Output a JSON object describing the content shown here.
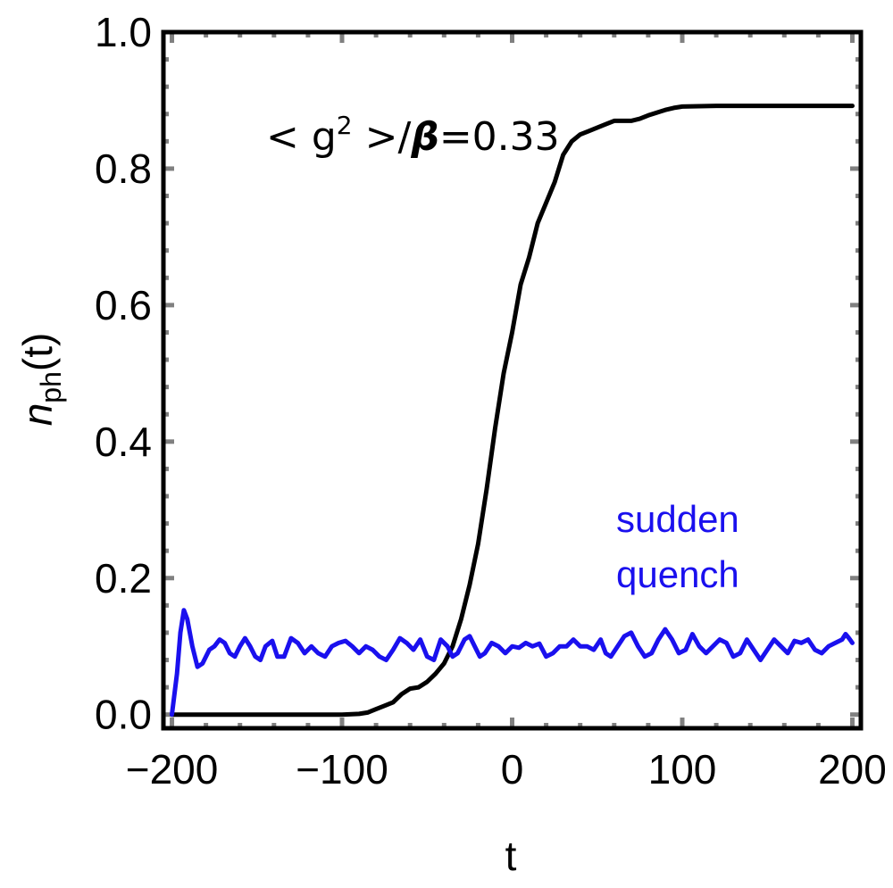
{
  "chart_data": {
    "type": "line",
    "xlabel": "t",
    "ylabel": {
      "base": "n",
      "sub": "ph",
      "suffix": "(t)"
    },
    "xlim": [
      -205,
      205
    ],
    "ylim": [
      -0.02,
      1.0
    ],
    "x_ticks": [
      -200,
      -100,
      0,
      100,
      200
    ],
    "x_tick_labels": [
      "−200",
      "−100",
      "0",
      "100",
      "200"
    ],
    "y_ticks": [
      0.0,
      0.2,
      0.4,
      0.6,
      0.8,
      1.0
    ],
    "y_tick_labels": [
      "0.0",
      "0.2",
      "0.4",
      "0.6",
      "0.8",
      "1.0"
    ],
    "grid": false,
    "annotation": {
      "pre": "< g",
      "sup": "2",
      "mid": " >/",
      "beta": "β",
      "post": "=0.33"
    },
    "series": [
      {
        "name": "",
        "color": "#000000",
        "points": [
          [
            -200,
            0.0
          ],
          [
            -180,
            0.0
          ],
          [
            -160,
            0.0
          ],
          [
            -140,
            0.0
          ],
          [
            -120,
            0.0
          ],
          [
            -100,
            0.0
          ],
          [
            -90,
            0.001
          ],
          [
            -85,
            0.003
          ],
          [
            -80,
            0.008
          ],
          [
            -75,
            0.013
          ],
          [
            -70,
            0.018
          ],
          [
            -65,
            0.03
          ],
          [
            -60,
            0.038
          ],
          [
            -55,
            0.04
          ],
          [
            -50,
            0.048
          ],
          [
            -45,
            0.06
          ],
          [
            -40,
            0.075
          ],
          [
            -35,
            0.1
          ],
          [
            -30,
            0.14
          ],
          [
            -25,
            0.19
          ],
          [
            -20,
            0.25
          ],
          [
            -15,
            0.33
          ],
          [
            -10,
            0.42
          ],
          [
            -5,
            0.5
          ],
          [
            0,
            0.56
          ],
          [
            5,
            0.63
          ],
          [
            10,
            0.67
          ],
          [
            15,
            0.72
          ],
          [
            20,
            0.75
          ],
          [
            25,
            0.78
          ],
          [
            30,
            0.82
          ],
          [
            35,
            0.84
          ],
          [
            40,
            0.85
          ],
          [
            45,
            0.855
          ],
          [
            50,
            0.86
          ],
          [
            55,
            0.865
          ],
          [
            60,
            0.87
          ],
          [
            65,
            0.87
          ],
          [
            70,
            0.87
          ],
          [
            75,
            0.873
          ],
          [
            80,
            0.878
          ],
          [
            85,
            0.882
          ],
          [
            90,
            0.886
          ],
          [
            95,
            0.889
          ],
          [
            100,
            0.891
          ],
          [
            120,
            0.892
          ],
          [
            140,
            0.892
          ],
          [
            160,
            0.892
          ],
          [
            180,
            0.892
          ],
          [
            200,
            0.892
          ]
        ]
      },
      {
        "name": "sudden\nquench",
        "legend_lines": [
          "sudden",
          "quench"
        ],
        "color": "#1a10ee",
        "points": [
          [
            -200,
            0.0
          ],
          [
            -197,
            0.06
          ],
          [
            -195,
            0.12
          ],
          [
            -193,
            0.153
          ],
          [
            -191,
            0.14
          ],
          [
            -188,
            0.1
          ],
          [
            -185,
            0.07
          ],
          [
            -182,
            0.075
          ],
          [
            -178,
            0.095
          ],
          [
            -175,
            0.1
          ],
          [
            -172,
            0.11
          ],
          [
            -169,
            0.105
          ],
          [
            -166,
            0.09
          ],
          [
            -163,
            0.085
          ],
          [
            -160,
            0.1
          ],
          [
            -157,
            0.112
          ],
          [
            -154,
            0.1
          ],
          [
            -151,
            0.085
          ],
          [
            -148,
            0.08
          ],
          [
            -145,
            0.1
          ],
          [
            -141,
            0.108
          ],
          [
            -138,
            0.085
          ],
          [
            -134,
            0.085
          ],
          [
            -130,
            0.112
          ],
          [
            -126,
            0.105
          ],
          [
            -122,
            0.09
          ],
          [
            -118,
            0.1
          ],
          [
            -114,
            0.09
          ],
          [
            -110,
            0.085
          ],
          [
            -106,
            0.1
          ],
          [
            -102,
            0.105
          ],
          [
            -98,
            0.108
          ],
          [
            -94,
            0.1
          ],
          [
            -90,
            0.09
          ],
          [
            -86,
            0.1
          ],
          [
            -82,
            0.095
          ],
          [
            -78,
            0.085
          ],
          [
            -74,
            0.08
          ],
          [
            -70,
            0.095
          ],
          [
            -66,
            0.112
          ],
          [
            -62,
            0.105
          ],
          [
            -58,
            0.095
          ],
          [
            -54,
            0.11
          ],
          [
            -50,
            0.085
          ],
          [
            -46,
            0.08
          ],
          [
            -42,
            0.11
          ],
          [
            -38,
            0.1
          ],
          [
            -35,
            0.085
          ],
          [
            -32,
            0.09
          ],
          [
            -28,
            0.11
          ],
          [
            -25,
            0.115
          ],
          [
            -22,
            0.1
          ],
          [
            -19,
            0.085
          ],
          [
            -16,
            0.09
          ],
          [
            -12,
            0.105
          ],
          [
            -8,
            0.1
          ],
          [
            -4,
            0.09
          ],
          [
            0,
            0.1
          ],
          [
            4,
            0.098
          ],
          [
            8,
            0.105
          ],
          [
            12,
            0.1
          ],
          [
            16,
            0.104
          ],
          [
            20,
            0.085
          ],
          [
            24,
            0.09
          ],
          [
            28,
            0.1
          ],
          [
            32,
            0.1
          ],
          [
            36,
            0.11
          ],
          [
            40,
            0.1
          ],
          [
            44,
            0.1
          ],
          [
            48,
            0.095
          ],
          [
            52,
            0.11
          ],
          [
            55,
            0.09
          ],
          [
            58,
            0.085
          ],
          [
            62,
            0.1
          ],
          [
            66,
            0.115
          ],
          [
            70,
            0.12
          ],
          [
            74,
            0.1
          ],
          [
            78,
            0.085
          ],
          [
            82,
            0.09
          ],
          [
            86,
            0.11
          ],
          [
            90,
            0.125
          ],
          [
            94,
            0.11
          ],
          [
            98,
            0.09
          ],
          [
            102,
            0.095
          ],
          [
            106,
            0.118
          ],
          [
            110,
            0.1
          ],
          [
            114,
            0.09
          ],
          [
            118,
            0.1
          ],
          [
            122,
            0.11
          ],
          [
            126,
            0.105
          ],
          [
            130,
            0.085
          ],
          [
            134,
            0.09
          ],
          [
            138,
            0.11
          ],
          [
            142,
            0.095
          ],
          [
            146,
            0.08
          ],
          [
            150,
            0.095
          ],
          [
            154,
            0.11
          ],
          [
            158,
            0.1
          ],
          [
            162,
            0.09
          ],
          [
            166,
            0.108
          ],
          [
            170,
            0.105
          ],
          [
            174,
            0.11
          ],
          [
            178,
            0.095
          ],
          [
            182,
            0.09
          ],
          [
            186,
            0.1
          ],
          [
            190,
            0.105
          ],
          [
            194,
            0.11
          ],
          [
            196,
            0.118
          ],
          [
            198,
            0.112
          ],
          [
            200,
            0.105
          ]
        ]
      }
    ]
  }
}
